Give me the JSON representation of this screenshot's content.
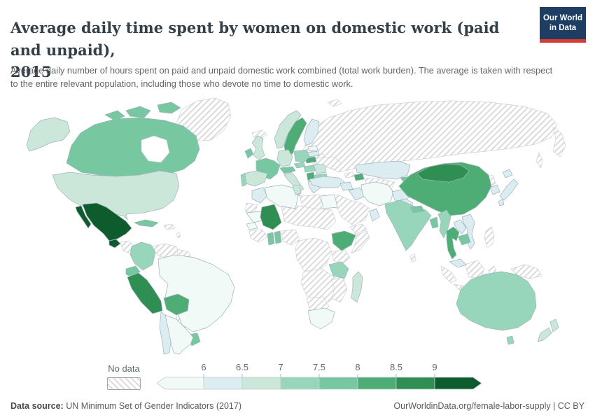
{
  "header": {
    "title_line1": "Average daily time spent by women on domestic work (paid and unpaid),",
    "title_line2": "2015",
    "subtitle": "Average daily number of hours spent on paid and unpaid domestic work combined (total work burden). The average is taken with respect to the entire relevant population, including those who devote no time to domestic work.",
    "logo": {
      "line1": "Our World",
      "line2": "in Data",
      "bg_color": "#1d3d63",
      "accent_color": "#d73c34"
    }
  },
  "legend": {
    "no_data_label": "No data",
    "tick_labels": [
      "6",
      "6.5",
      "7",
      "7.5",
      "8",
      "8.5",
      "9"
    ]
  },
  "footer": {
    "source_label": "Data source:",
    "source_text": " UN Minimum Set of Gender Indicators (2017)",
    "right_text": "OurWorldinData.org/female-labor-supply | CC BY"
  },
  "chart_data": {
    "type": "choropleth",
    "title": "Average daily time spent by women on domestic work (paid and unpaid), 2015",
    "unit": "hours per day",
    "legend_position": "bottom",
    "bins": [
      {
        "label": "<6",
        "color": "#f2faf7"
      },
      {
        "label": "6–6.5",
        "color": "#dcedf1"
      },
      {
        "label": "6.5–7",
        "color": "#cbe7da"
      },
      {
        "label": "7–7.5",
        "color": "#98d6bc"
      },
      {
        "label": "7.5–8",
        "color": "#77c7a1"
      },
      {
        "label": "8–8.5",
        "color": "#4ead74"
      },
      {
        "label": "8.5–9",
        "color": "#2f8e52"
      },
      {
        "label": ">9",
        "color": "#0e5c2d"
      }
    ],
    "no_data": {
      "label": "No data",
      "pattern": "diagonal-hatch"
    },
    "regions": {
      "Canada": "7.5–8",
      "United States": "6.5–7",
      "Mexico": ">9",
      "Guatemala": ">9",
      "Panama": "6–6.5",
      "Cuba": "7.5–8",
      "Colombia": "7–7.5",
      "Ecuador": "7.5–8",
      "Peru": "8.5–9",
      "Bolivia": "8–8.5",
      "Brazil": "<6",
      "Uruguay": "7.5–8",
      "Argentina": "<6",
      "Chile": "6–6.5",
      "Norway": "6.5–7",
      "Sweden": "8–8.5",
      "Finland": "6–6.5",
      "Estonia": "<6",
      "Latvia": "6–6.5",
      "Lithuania": "8–8.5",
      "United Kingdom": "6.5–7",
      "Ireland": "7.5–8",
      "France": "7.5–8",
      "Spain": "6.5–7",
      "Portugal": "7–7.5",
      "Germany": "6.5–7",
      "Poland": "7–7.5",
      "Czechia": "7–7.5",
      "Austria": "7.5–8",
      "Italy": "6.5–7",
      "Hungary": "7–7.5",
      "Romania": "6.5–7",
      "Serbia": "8–8.5",
      "Bulgaria": "7–7.5",
      "Greece": "6–6.5",
      "Turkey": "6–6.5",
      "Kazakhstan": "6–6.5",
      "Kyrgyzstan": "7.5–8",
      "Azerbaijan": "8–8.5",
      "Syria": "6–6.5",
      "Iraq": "6–6.5",
      "Iran": "<6",
      "Oman": "6–6.5",
      "Afghanistan": "6–6.5",
      "Pakistan": "6–6.5",
      "India": "7–7.5",
      "Nepal": "7.5–8",
      "Bangladesh": "7.5–8",
      "China": "8–8.5",
      "Mongolia": "8.5–9",
      "Japan": "6–6.5",
      "South Korea": "6–6.5",
      "Myanmar": "7–7.5",
      "Thailand": "8–8.5",
      "Laos": "6–6.5",
      "Cambodia": "7.5–8",
      "Vietnam": "6–6.5",
      "Malaysia": "6–6.5",
      "Australia": "7–7.5",
      "New Zealand": "6.5–7",
      "Morocco": "6–6.5",
      "Algeria": "<6",
      "Tunisia": "6.5–7",
      "Egypt": "<6",
      "Mauritania": "<6",
      "Senegal": "<6",
      "Mali": "8.5–9",
      "Ghana": "7.5–8",
      "Benin": "7.5–8",
      "Ethiopia": "8–8.5",
      "Tanzania": "7–7.5",
      "Madagascar": "6.5–7",
      "South Africa": "<6",
      "Greenland": "No data",
      "Iceland": "No data",
      "Svalbard": "No data",
      "Russia": "No data",
      "Belarus": "No data",
      "Ukraine": "No data",
      "Honduras & Nicaragua": "No data",
      "Hispaniola": "No data",
      "Caribbean": "No data",
      "Venezuela": "No data",
      "Guyanas": "No data",
      "Paraguay": "No data",
      "Georgia": "No data",
      "Central Asia": "No data",
      "Saudi Arabia": "No data",
      "Yemen": "No data",
      "Libya": "No data",
      "Western Sahara": "No data",
      "Niger, Chad & Sudan": "No data",
      "Nigeria": "No data",
      "West Africa": "No data",
      "Central Africa": "No data",
      "Somalia": "No data",
      "East Africa": "No data",
      "Mozambique & Zimbabwe": "No data",
      "Namibia & Botswana": "No data",
      "North Korea": "No data",
      "Sri Lanka": "No data",
      "Indonesia": "No data",
      "Philippines": "No data",
      "Papua New Guinea": "No data"
    }
  }
}
